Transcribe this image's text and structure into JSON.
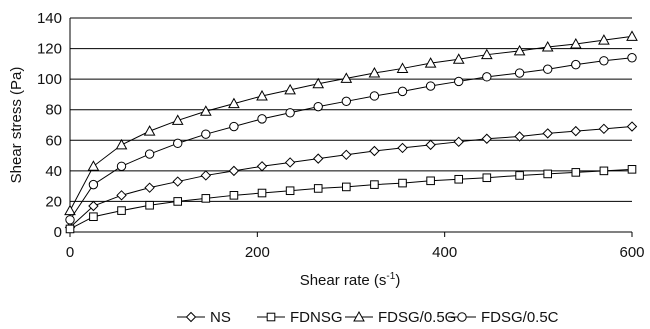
{
  "chart_data": {
    "type": "line",
    "title": "",
    "xlabel": "Shear rate (s",
    "xlabel_sup": "-1",
    "xlabel_close": ")",
    "ylabel": "Shear stress (Pa)",
    "xlim": [
      0,
      600
    ],
    "ylim": [
      0,
      140
    ],
    "x_ticks": [
      0,
      200,
      400,
      600
    ],
    "x_tick_labels": [
      "0",
      "200",
      "400",
      "600"
    ],
    "y_ticks": [
      0,
      20,
      40,
      60,
      80,
      100,
      120,
      140
    ],
    "y_tick_labels": [
      "0",
      "20",
      "40",
      "60",
      "80",
      "100",
      "120",
      "140"
    ],
    "grid": "horizontal",
    "legend_position": "bottom",
    "series": [
      {
        "name": "NS",
        "marker": "diamond",
        "x": [
          0,
          25,
          55,
          85,
          115,
          145,
          175,
          205,
          235,
          265,
          295,
          325,
          355,
          385,
          415,
          445,
          480,
          510,
          540,
          570,
          600
        ],
        "y": [
          3,
          17,
          24,
          29,
          33,
          37,
          40,
          43,
          45.5,
          48,
          50.5,
          53,
          55,
          57,
          59,
          61,
          62.5,
          64.5,
          66,
          67.5,
          69
        ]
      },
      {
        "name": "FDNSG",
        "marker": "square",
        "x": [
          0,
          25,
          55,
          85,
          115,
          145,
          175,
          205,
          235,
          265,
          295,
          325,
          355,
          385,
          415,
          445,
          480,
          510,
          540,
          570,
          600
        ],
        "y": [
          2,
          10,
          14,
          17.5,
          20,
          22,
          24,
          25.5,
          27,
          28.5,
          29.5,
          31,
          32,
          33.5,
          34.5,
          35.5,
          37,
          38,
          39,
          40,
          41
        ]
      },
      {
        "name": "FDSG/0.5G",
        "marker": "triangle",
        "x": [
          0,
          25,
          55,
          85,
          115,
          145,
          175,
          205,
          235,
          265,
          295,
          325,
          355,
          385,
          415,
          445,
          480,
          510,
          540,
          570,
          600
        ],
        "y": [
          14,
          43,
          57,
          66,
          73,
          79,
          84,
          89,
          93,
          97,
          100.5,
          104,
          107,
          110.5,
          113,
          116,
          118.5,
          121,
          123,
          125.5,
          128
        ]
      },
      {
        "name": "FDSG/0.5C",
        "marker": "circle",
        "x": [
          0,
          25,
          55,
          85,
          115,
          145,
          175,
          205,
          235,
          265,
          295,
          325,
          355,
          385,
          415,
          445,
          480,
          510,
          540,
          570,
          600
        ],
        "y": [
          8,
          31,
          43,
          51,
          58,
          64,
          69,
          74,
          78,
          82,
          85.5,
          89,
          92,
          95.5,
          98.5,
          101.5,
          104,
          106.5,
          109.5,
          112,
          114
        ]
      }
    ]
  }
}
